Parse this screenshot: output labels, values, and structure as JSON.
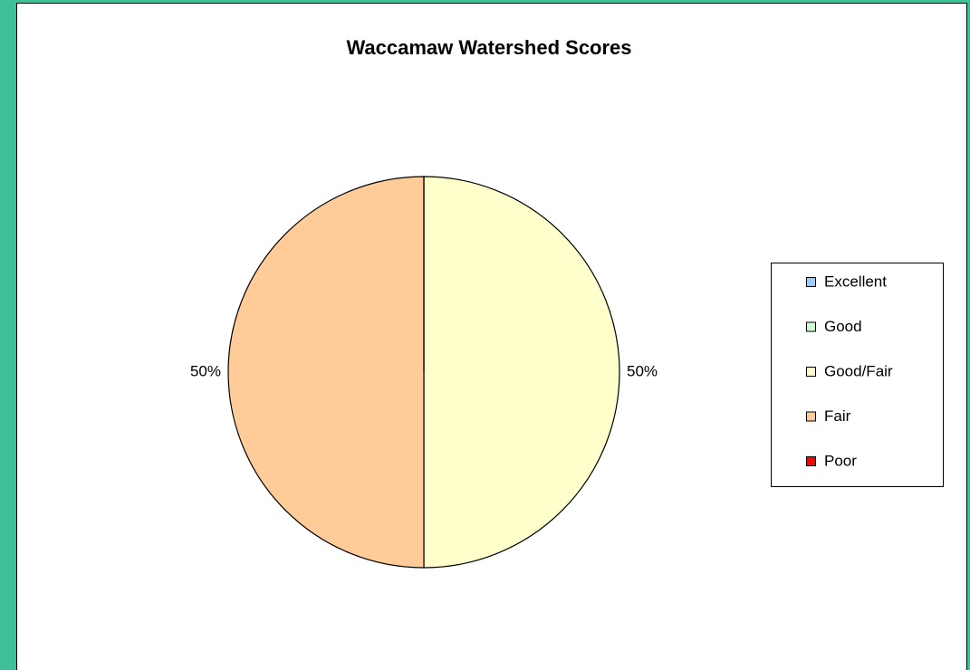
{
  "chart_data": {
    "type": "pie",
    "title": "Waccamaw Watershed Scores",
    "categories": [
      "Excellent",
      "Good",
      "Good/Fair",
      "Fair",
      "Poor"
    ],
    "values": [
      0,
      0,
      50,
      50,
      0
    ],
    "value_labels": [
      null,
      null,
      "50%",
      "50%",
      null
    ],
    "colors": [
      "#99ccff",
      "#ccffcc",
      "#ffffcc",
      "#ffcc99",
      "#ff0000"
    ],
    "legend": "right"
  }
}
